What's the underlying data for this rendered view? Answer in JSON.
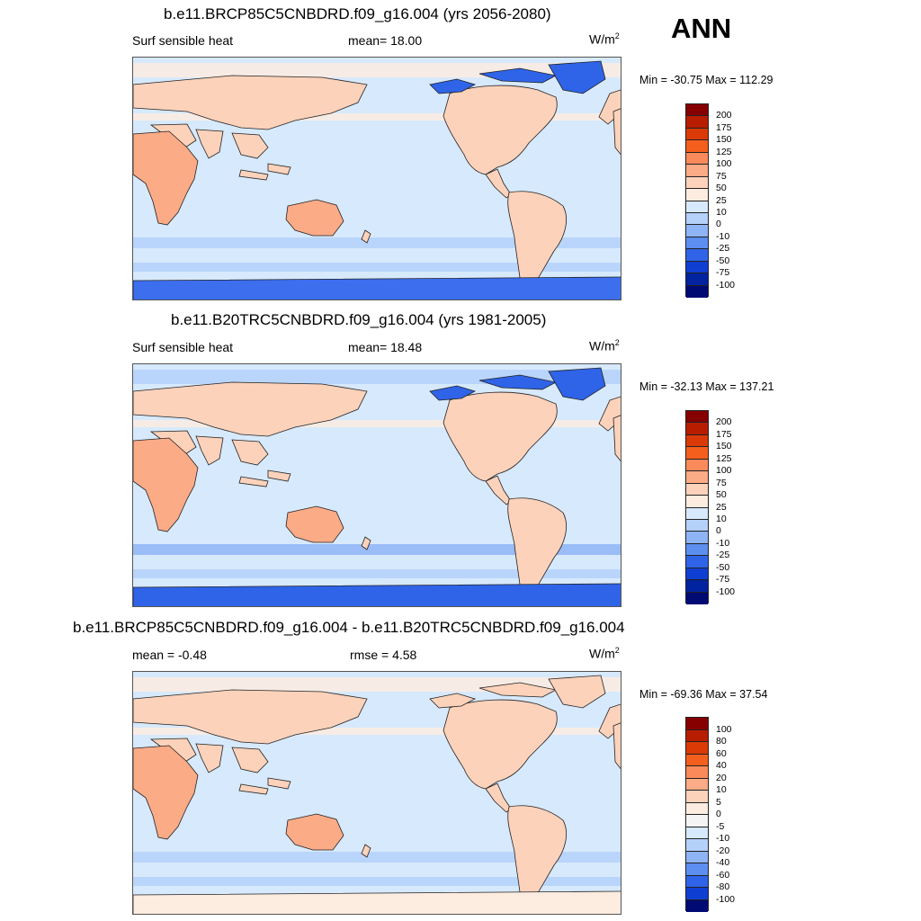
{
  "season": "ANN",
  "units_base": "W/m",
  "units_exp": "2",
  "panels": [
    {
      "title": "b.e11.BRCP85C5CNBDRD.f09_g16.004 (yrs 2056-2080)",
      "left_label": "Surf sensible heat",
      "center_label": "mean=  18.00",
      "minmax": "Min = -30.75 Max = 112.29",
      "colorbar": {
        "labels": [
          "200",
          "175",
          "150",
          "125",
          "100",
          "75",
          "50",
          "25",
          "10",
          "0",
          "-10",
          "-25",
          "-50",
          "-75",
          "-100"
        ],
        "colors": [
          "#870000",
          "#b81d00",
          "#db3a07",
          "#f55f1e",
          "#fb8a5a",
          "#fcab87",
          "#fcd2bb",
          "#fdece0",
          "#d7e9fc",
          "#b4d1fa",
          "#8fb4f6",
          "#5c8ff0",
          "#2f64e8",
          "#0f3fd2",
          "#00239f",
          "#000a73"
        ]
      },
      "map": {
        "arctic_field": "#2f64e8",
        "antarctic_field": "#3c6eee",
        "ocean_band_positive": true
      }
    },
    {
      "title": "b.e11.B20TRC5CNBDRD.f09_g16.004 (yrs 1981-2005)",
      "left_label": "Surf sensible heat",
      "center_label": "mean=  18.48",
      "minmax": "Min = -32.13 Max = 137.21",
      "colorbar": {
        "labels": [
          "200",
          "175",
          "150",
          "125",
          "100",
          "75",
          "50",
          "25",
          "10",
          "0",
          "-10",
          "-25",
          "-50",
          "-75",
          "-100"
        ],
        "colors": [
          "#870000",
          "#b81d00",
          "#db3a07",
          "#f55f1e",
          "#fb8a5a",
          "#fcab87",
          "#fcd2bb",
          "#fdece0",
          "#d7e9fc",
          "#b4d1fa",
          "#8fb4f6",
          "#5c8ff0",
          "#2f64e8",
          "#0f3fd2",
          "#00239f",
          "#000a73"
        ]
      },
      "map": {
        "arctic_field": "#2f64e8",
        "antarctic_field": "#2f64e8",
        "ocean_band_positive": false
      }
    },
    {
      "title": "b.e11.BRCP85C5CNBDRD.f09_g16.004 - b.e11.B20TRC5CNBDRD.f09_g16.004",
      "left_label": "mean =  -0.48",
      "center_label": "rmse =   4.58",
      "minmax": "Min = -69.36 Max =  37.54",
      "colorbar": {
        "labels": [
          "100",
          "80",
          "60",
          "40",
          "20",
          "10",
          "5",
          "0",
          "-5",
          "-10",
          "-20",
          "-40",
          "-60",
          "-80",
          "-100"
        ],
        "colors": [
          "#870000",
          "#b81d00",
          "#db3a07",
          "#f55f1e",
          "#fb8a5a",
          "#fcab87",
          "#fcd2bb",
          "#fdece0",
          "#f4f4f4",
          "#d7e9fc",
          "#b4d1fa",
          "#8fb4f6",
          "#5c8ff0",
          "#2f64e8",
          "#0f3fd2",
          "#000a73"
        ]
      },
      "map": {
        "arctic_field": "#fcd2bb",
        "antarctic_field": "#fdece0",
        "ocean_band_positive": true
      }
    }
  ]
}
